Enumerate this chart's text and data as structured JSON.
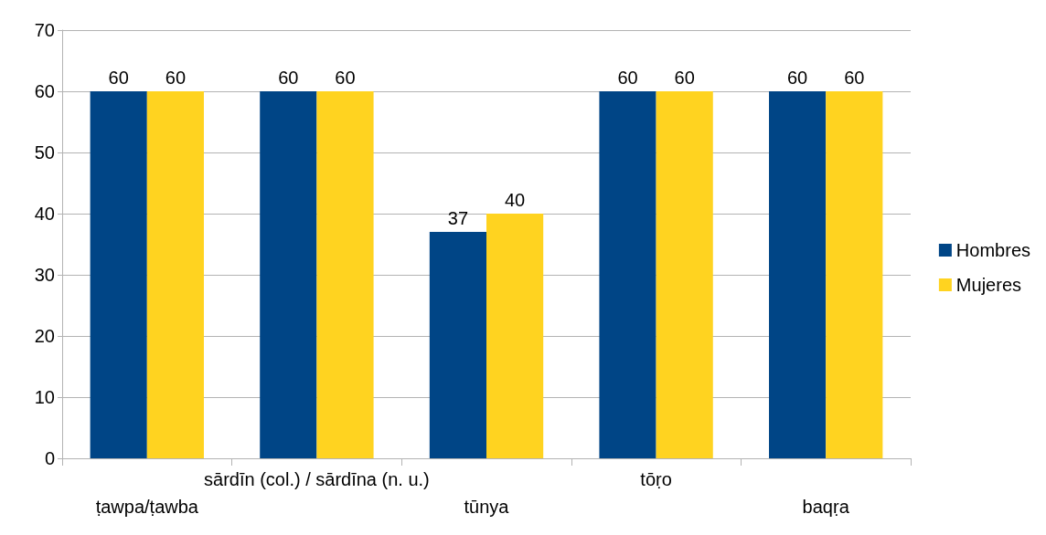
{
  "chart_data": {
    "type": "bar",
    "categories": [
      "ṭawpa/ṭawba",
      "sārdīn (col.) / sārdīna (n. u.)",
      "tūnya",
      "tōṛo",
      "baqṛa"
    ],
    "series": [
      {
        "name": "Hombres",
        "color": "#004586",
        "values": [
          60,
          60,
          37,
          60,
          60
        ]
      },
      {
        "name": "Mujeres",
        "color": "#ffd320",
        "values": [
          60,
          60,
          40,
          60,
          60
        ]
      }
    ],
    "ylim": [
      0,
      70
    ],
    "yticks": [
      0,
      10,
      20,
      30,
      40,
      50,
      60,
      70
    ],
    "grid": "y",
    "legend": "right",
    "data_labels": true
  }
}
